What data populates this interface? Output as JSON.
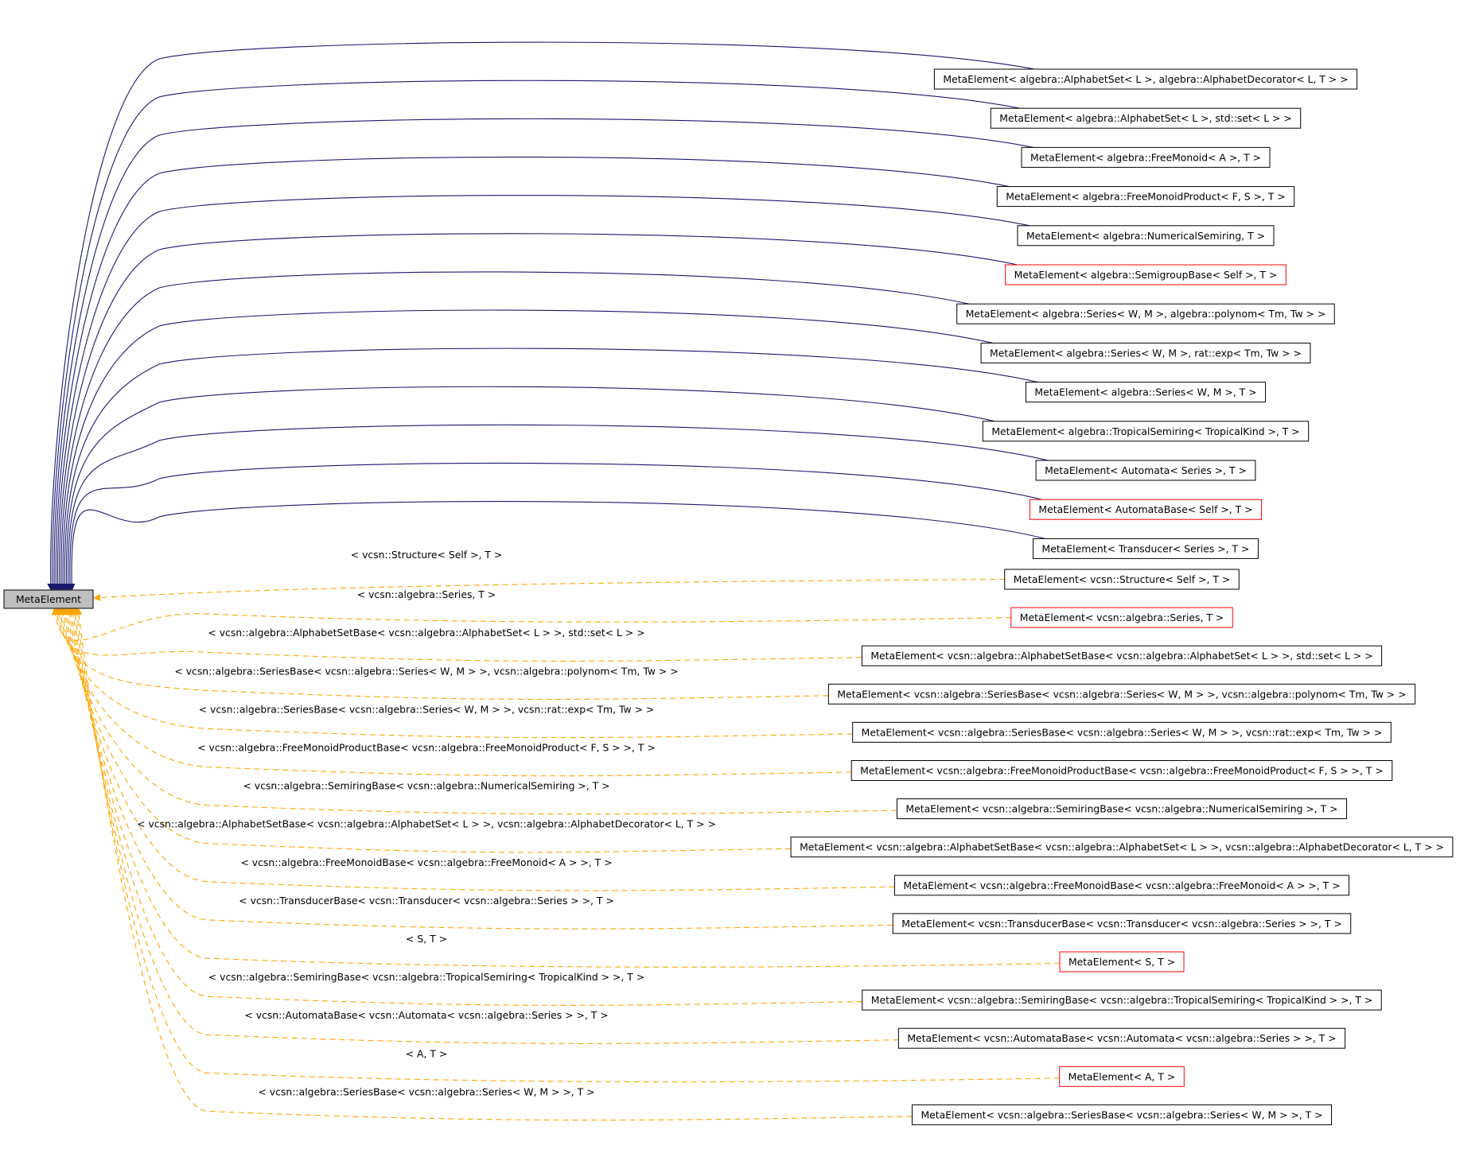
{
  "root": {
    "label": "MetaElement"
  },
  "colors": {
    "solid_edge": "#191970",
    "dashed_edge": "#ffa500",
    "root_fill": "#bfbfbf",
    "box_border": "#000000",
    "incomplete_border": "#ff0000"
  },
  "solid_nodes": [
    {
      "label": "MetaElement< algebra::AlphabetSet< L >, algebra::AlphabetDecorator< L, T > >",
      "incomplete": false
    },
    {
      "label": "MetaElement< algebra::AlphabetSet< L >, std::set< L > >",
      "incomplete": false
    },
    {
      "label": "MetaElement< algebra::FreeMonoid< A >, T >",
      "incomplete": false
    },
    {
      "label": "MetaElement< algebra::FreeMonoidProduct< F, S >, T >",
      "incomplete": false
    },
    {
      "label": "MetaElement< algebra::NumericalSemiring, T >",
      "incomplete": false
    },
    {
      "label": "MetaElement< algebra::SemigroupBase< Self >, T >",
      "incomplete": true
    },
    {
      "label": "MetaElement< algebra::Series< W, M >, algebra::polynom< Tm, Tw > >",
      "incomplete": false
    },
    {
      "label": "MetaElement< algebra::Series< W, M >, rat::exp< Tm, Tw > >",
      "incomplete": false
    },
    {
      "label": "MetaElement< algebra::Series< W, M >, T >",
      "incomplete": false
    },
    {
      "label": "MetaElement< algebra::TropicalSemiring< TropicalKind >, T >",
      "incomplete": false
    },
    {
      "label": "MetaElement< Automata< Series >, T >",
      "incomplete": false
    },
    {
      "label": "MetaElement< AutomataBase< Self >, T >",
      "incomplete": true
    },
    {
      "label": "MetaElement< Transducer< Series >, T >",
      "incomplete": false
    }
  ],
  "dashed_nodes": [
    {
      "label": "MetaElement< vcsn::Structure< Self >, T >",
      "edge_label": "< vcsn::Structure< Self >, T >",
      "incomplete": false
    },
    {
      "label": "MetaElement< vcsn::algebra::Series, T >",
      "edge_label": "< vcsn::algebra::Series, T >",
      "incomplete": true
    },
    {
      "label": "MetaElement< vcsn::algebra::AlphabetSetBase< vcsn::algebra::AlphabetSet< L > >, std::set< L > >",
      "edge_label": "< vcsn::algebra::AlphabetSetBase< vcsn::algebra::AlphabetSet< L > >, std::set< L > >",
      "incomplete": false
    },
    {
      "label": "MetaElement< vcsn::algebra::SeriesBase< vcsn::algebra::Series< W, M > >, vcsn::algebra::polynom< Tm, Tw > >",
      "edge_label": "< vcsn::algebra::SeriesBase< vcsn::algebra::Series< W, M > >, vcsn::algebra::polynom< Tm, Tw > >",
      "incomplete": false
    },
    {
      "label": "MetaElement< vcsn::algebra::SeriesBase< vcsn::algebra::Series< W, M > >, vcsn::rat::exp< Tm, Tw > >",
      "edge_label": "< vcsn::algebra::SeriesBase< vcsn::algebra::Series< W, M > >, vcsn::rat::exp< Tm, Tw > >",
      "incomplete": false
    },
    {
      "label": "MetaElement< vcsn::algebra::FreeMonoidProductBase< vcsn::algebra::FreeMonoidProduct< F, S > >, T >",
      "edge_label": "< vcsn::algebra::FreeMonoidProductBase< vcsn::algebra::FreeMonoidProduct< F, S > >, T >",
      "incomplete": false
    },
    {
      "label": "MetaElement< vcsn::algebra::SemiringBase< vcsn::algebra::NumericalSemiring >, T >",
      "edge_label": "< vcsn::algebra::SemiringBase< vcsn::algebra::NumericalSemiring >, T >",
      "incomplete": false
    },
    {
      "label": "MetaElement< vcsn::algebra::AlphabetSetBase< vcsn::algebra::AlphabetSet< L > >, vcsn::algebra::AlphabetDecorator< L, T > >",
      "edge_label": "< vcsn::algebra::AlphabetSetBase< vcsn::algebra::AlphabetSet< L > >, vcsn::algebra::AlphabetDecorator< L, T > >",
      "incomplete": false
    },
    {
      "label": "MetaElement< vcsn::algebra::FreeMonoidBase< vcsn::algebra::FreeMonoid< A > >, T >",
      "edge_label": "< vcsn::algebra::FreeMonoidBase< vcsn::algebra::FreeMonoid< A > >, T >",
      "incomplete": false
    },
    {
      "label": "MetaElement< vcsn::TransducerBase< vcsn::Transducer< vcsn::algebra::Series > >, T >",
      "edge_label": "< vcsn::TransducerBase< vcsn::Transducer< vcsn::algebra::Series > >, T >",
      "incomplete": false
    },
    {
      "label": "MetaElement< S, T >",
      "edge_label": "< S, T >",
      "incomplete": true
    },
    {
      "label": "MetaElement< vcsn::algebra::SemiringBase< vcsn::algebra::TropicalSemiring< TropicalKind > >, T >",
      "edge_label": "< vcsn::algebra::SemiringBase< vcsn::algebra::TropicalSemiring< TropicalKind > >, T >",
      "incomplete": false
    },
    {
      "label": "MetaElement< vcsn::AutomataBase< vcsn::Automata< vcsn::algebra::Series > >, T >",
      "edge_label": "< vcsn::AutomataBase< vcsn::Automata< vcsn::algebra::Series > >, T >",
      "incomplete": false
    },
    {
      "label": "MetaElement< A, T >",
      "edge_label": "< A, T >",
      "incomplete": true
    },
    {
      "label": "MetaElement< vcsn::algebra::SeriesBase< vcsn::algebra::Series< W, M > >, T >",
      "edge_label": "< vcsn::algebra::SeriesBase< vcsn::algebra::Series< W, M > >, T >",
      "incomplete": false
    }
  ]
}
